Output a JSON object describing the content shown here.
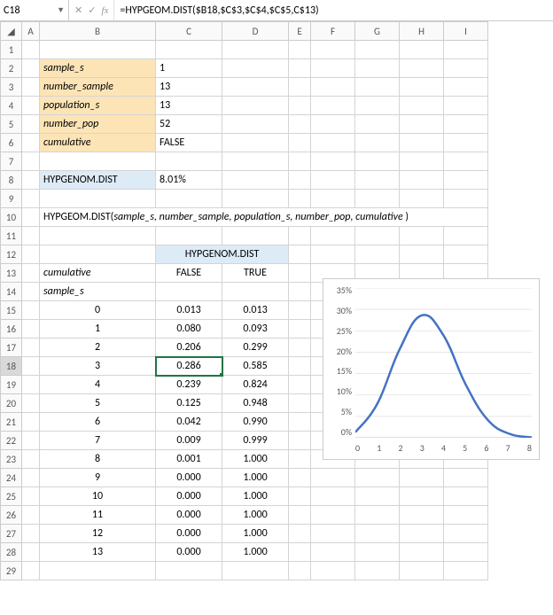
{
  "nameBox": "C18",
  "formula": "=HYPGEOM.DIST($B18,$C$3,$C$4,$C$5,C$13)",
  "columns": [
    "A",
    "B",
    "C",
    "D",
    "E",
    "F",
    "G",
    "H",
    "I"
  ],
  "rows": [
    "1",
    "2",
    "3",
    "4",
    "5",
    "6",
    "7",
    "8",
    "9",
    "10",
    "11",
    "12",
    "13",
    "14",
    "15",
    "16",
    "17",
    "18",
    "19",
    "20",
    "21",
    "22",
    "23",
    "24",
    "25",
    "26",
    "27",
    "28",
    "29"
  ],
  "params": {
    "r2": {
      "label": "sample_s",
      "val": "1"
    },
    "r3": {
      "label": "number_sample",
      "val": "13"
    },
    "r4": {
      "label": "population_s",
      "val": "13"
    },
    "r5": {
      "label": "number_pop",
      "val": "52"
    },
    "r6": {
      "label": "cumulative",
      "val": "FALSE"
    }
  },
  "result": {
    "label": "HYPGENOM.DIST",
    "val": "8.01%"
  },
  "formulaDesc": "HYPGEOM.DIST(sample_s, number_sample, population_s, number_pop, cumulative )",
  "tableHeader": "HYPGENOM.DIST",
  "colLabels": {
    "b": "cumulative",
    "c": "FALSE",
    "d": "TRUE",
    "b14": "sample_s"
  },
  "data": [
    {
      "s": "0",
      "f": "0.013",
      "t": "0.013"
    },
    {
      "s": "1",
      "f": "0.080",
      "t": "0.093"
    },
    {
      "s": "2",
      "f": "0.206",
      "t": "0.299"
    },
    {
      "s": "3",
      "f": "0.286",
      "t": "0.585"
    },
    {
      "s": "4",
      "f": "0.239",
      "t": "0.824"
    },
    {
      "s": "5",
      "f": "0.125",
      "t": "0.948"
    },
    {
      "s": "6",
      "f": "0.042",
      "t": "0.990"
    },
    {
      "s": "7",
      "f": "0.009",
      "t": "0.999"
    },
    {
      "s": "8",
      "f": "0.001",
      "t": "1.000"
    },
    {
      "s": "9",
      "f": "0.000",
      "t": "1.000"
    },
    {
      "s": "10",
      "f": "0.000",
      "t": "1.000"
    },
    {
      "s": "11",
      "f": "0.000",
      "t": "1.000"
    },
    {
      "s": "12",
      "f": "0.000",
      "t": "1.000"
    },
    {
      "s": "13",
      "f": "0.000",
      "t": "1.000"
    }
  ],
  "chart": {
    "type": "line",
    "x": [
      0,
      1,
      2,
      3,
      4,
      5,
      6,
      7,
      8
    ],
    "y": [
      0.013,
      0.08,
      0.206,
      0.286,
      0.239,
      0.125,
      0.042,
      0.009,
      0.001
    ],
    "ylim": [
      0,
      0.35
    ],
    "ytick_step": 0.05,
    "yticks": [
      "35%",
      "30%",
      "25%",
      "20%",
      "15%",
      "10%",
      "5%",
      "0%"
    ],
    "xticks": [
      "0",
      "1",
      "2",
      "3",
      "4",
      "5",
      "6",
      "7",
      "8"
    ],
    "line_color": "#4472c4",
    "grid_color": "#e6e6e6",
    "background": "#ffffff",
    "line_width": 2.5
  }
}
